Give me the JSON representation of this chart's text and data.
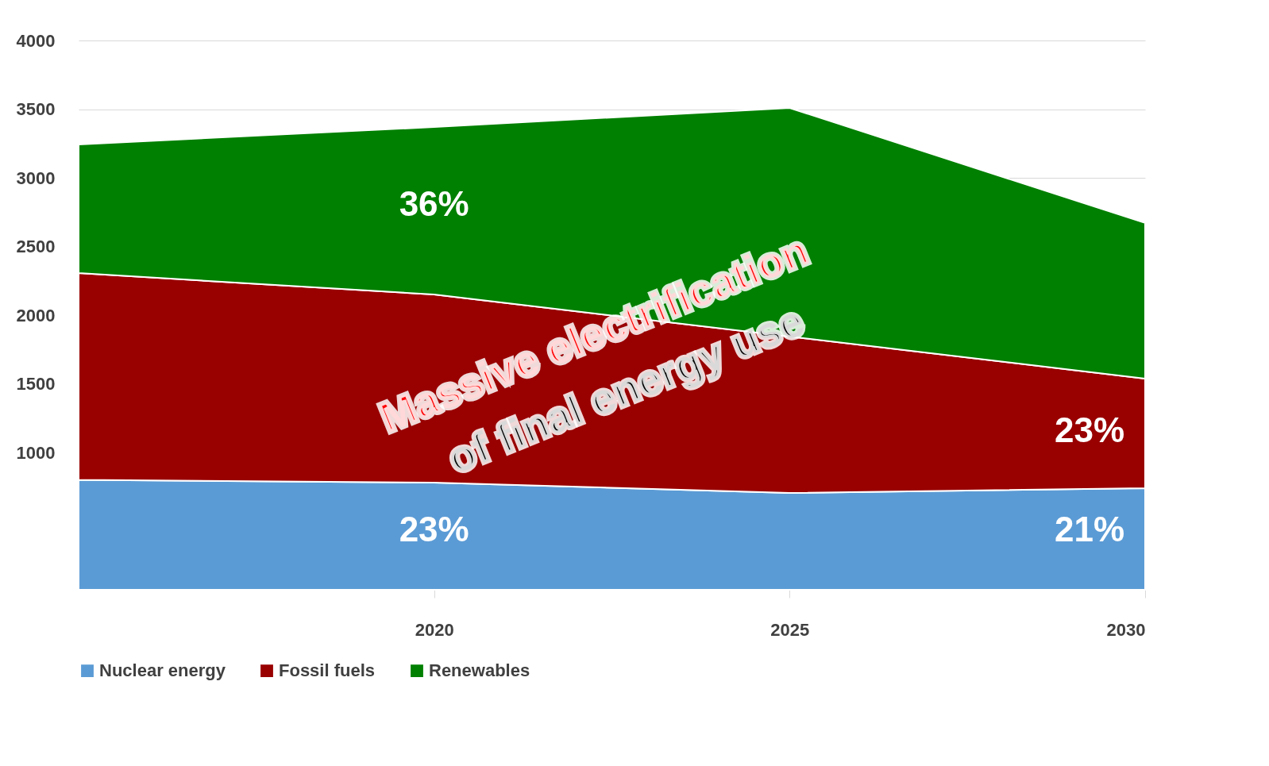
{
  "chart_data": {
    "type": "area",
    "stacked": true,
    "x": [
      2015,
      2020,
      2025,
      2030
    ],
    "series": [
      {
        "name": "Nuclear energy",
        "color": "#5b9bd5",
        "values": [
          800,
          780,
          705,
          740
        ]
      },
      {
        "name": "Fossil fuels",
        "color": "#990000",
        "values": [
          1506,
          1370,
          1139,
          798
        ]
      },
      {
        "name": "Renewables",
        "color": "#008000",
        "values": [
          937,
          1220,
          1665,
          1133
        ]
      }
    ],
    "xlim": [
      2015,
      2030
    ],
    "xticks": [
      2020,
      2025,
      2030
    ],
    "ylim": [
      0,
      4000
    ],
    "yticks": [
      1000,
      1500,
      2000,
      2500,
      3000,
      3500,
      4000
    ],
    "grid": "y",
    "legend": "bottom",
    "annotations": [
      "36%",
      "23%",
      "23%",
      "21%",
      "Massive electrification",
      "of final energy use"
    ]
  }
}
